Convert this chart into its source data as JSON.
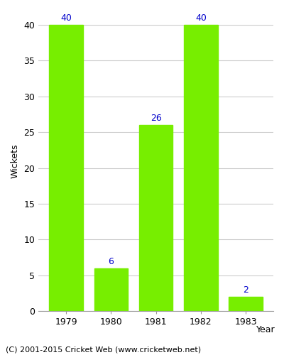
{
  "categories": [
    "1979",
    "1980",
    "1981",
    "1982",
    "1983"
  ],
  "values": [
    40,
    6,
    26,
    40,
    2
  ],
  "bar_color": "#77ee00",
  "label_color": "#0000cc",
  "ylabel": "Wickets",
  "xlabel": "Year",
  "ylim": [
    0,
    42
  ],
  "yticks": [
    0,
    5,
    10,
    15,
    20,
    25,
    30,
    35,
    40
  ],
  "footer": "(C) 2001-2015 Cricket Web (www.cricketweb.net)",
  "background_color": "#ffffff",
  "grid_color": "#cccccc",
  "label_fontsize": 9,
  "axis_fontsize": 9,
  "footer_fontsize": 8,
  "bar_width": 0.75
}
